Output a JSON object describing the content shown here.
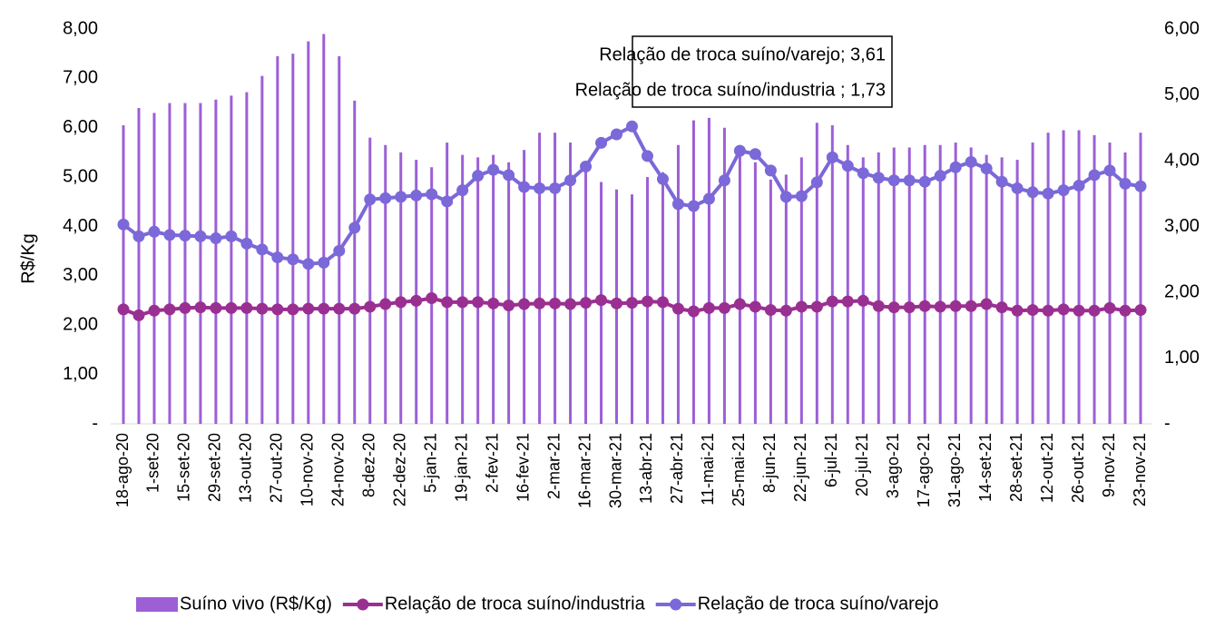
{
  "chart_data": {
    "type": "bar-line",
    "y_label": "R$/Kg",
    "annotations": [
      "Relação de troca suíno/varejo; 3,61",
      "Relação de troca suíno/industria ; 1,73"
    ],
    "categories": [
      "18-ago-20",
      null,
      "1-set-20",
      null,
      "15-set-20",
      null,
      "29-set-20",
      null,
      "13-out-20",
      null,
      "27-out-20",
      null,
      "10-nov-20",
      null,
      "24-nov-20",
      null,
      "8-dez-20",
      null,
      "22-dez-20",
      null,
      "5-jan-21",
      null,
      "19-jan-21",
      null,
      "2-fev-21",
      null,
      "16-fev-21",
      null,
      "2-mar-21",
      null,
      "16-mar-21",
      null,
      "30-mar-21",
      null,
      "13-abr-21",
      null,
      "27-abr-21",
      null,
      "11-mai-21",
      null,
      "25-mai-21",
      null,
      "8-jun-21",
      null,
      "22-jun-21",
      null,
      "6-jul-21",
      null,
      "20-jul-21",
      null,
      "3-ago-21",
      null,
      "17-ago-21",
      null,
      "31-ago-21",
      null,
      "14-set-21",
      null,
      "28-set-21",
      null,
      "12-out-21",
      null,
      "26-out-21",
      null,
      "9-nov-21",
      null,
      "23-nov-21"
    ],
    "series": [
      {
        "name": "Suíno vivo (R$/Kg)",
        "type": "bar",
        "color": "#9c5fd6",
        "values": [
          6.05,
          6.4,
          6.3,
          6.5,
          6.5,
          6.5,
          6.57,
          6.65,
          6.72,
          7.05,
          7.45,
          7.5,
          7.75,
          7.9,
          7.45,
          6.55,
          5.8,
          5.65,
          5.5,
          5.35,
          5.2,
          5.7,
          5.45,
          5.4,
          5.45,
          5.3,
          5.55,
          5.9,
          5.9,
          5.7,
          5.3,
          4.9,
          4.75,
          4.65,
          5.0,
          5.1,
          5.65,
          6.15,
          6.2,
          6.0,
          5.55,
          5.3,
          4.95,
          5.05,
          5.4,
          6.1,
          6.05,
          5.65,
          5.4,
          5.5,
          5.6,
          5.6,
          5.65,
          5.65,
          5.7,
          5.6,
          5.45,
          5.4,
          5.35,
          5.7,
          5.9,
          5.95,
          5.95,
          5.85,
          5.7,
          5.5,
          5.9
        ]
      },
      {
        "name": "Relação de troca suíno/industria",
        "type": "line",
        "axis": "y2",
        "color": "#9a2f92",
        "values": [
          1.74,
          1.65,
          1.72,
          1.74,
          1.76,
          1.77,
          1.76,
          1.76,
          1.76,
          1.75,
          1.74,
          1.74,
          1.75,
          1.75,
          1.75,
          1.75,
          1.78,
          1.82,
          1.85,
          1.87,
          1.91,
          1.85,
          1.85,
          1.85,
          1.83,
          1.8,
          1.82,
          1.83,
          1.83,
          1.82,
          1.84,
          1.88,
          1.83,
          1.84,
          1.86,
          1.85,
          1.75,
          1.71,
          1.76,
          1.76,
          1.82,
          1.78,
          1.73,
          1.72,
          1.78,
          1.78,
          1.86,
          1.86,
          1.87,
          1.79,
          1.77,
          1.77,
          1.79,
          1.78,
          1.79,
          1.79,
          1.82,
          1.77,
          1.72,
          1.73,
          1.72,
          1.74,
          1.72,
          1.72,
          1.76,
          1.72,
          1.73
        ]
      },
      {
        "name": "Relação de troca suíno/varejo",
        "type": "line",
        "axis": "y2",
        "color": "#7b68d9",
        "values": [
          3.03,
          2.85,
          2.92,
          2.87,
          2.86,
          2.85,
          2.82,
          2.85,
          2.74,
          2.65,
          2.53,
          2.5,
          2.43,
          2.45,
          2.63,
          2.98,
          3.41,
          3.43,
          3.45,
          3.47,
          3.49,
          3.38,
          3.55,
          3.77,
          3.86,
          3.78,
          3.6,
          3.58,
          3.58,
          3.7,
          3.91,
          4.27,
          4.4,
          4.52,
          4.07,
          3.72,
          3.34,
          3.31,
          3.42,
          3.7,
          4.15,
          4.1,
          3.85,
          3.45,
          3.46,
          3.67,
          4.05,
          3.92,
          3.81,
          3.74,
          3.7,
          3.7,
          3.68,
          3.77,
          3.9,
          3.98,
          3.88,
          3.68,
          3.58,
          3.52,
          3.5,
          3.55,
          3.62,
          3.78,
          3.85,
          3.65,
          3.61
        ]
      }
    ],
    "ylim": [
      0,
      8
    ],
    "yticks": [
      {
        "value": 0,
        "label": "-"
      },
      {
        "value": 1,
        "label": "1,00"
      },
      {
        "value": 2,
        "label": "2,00"
      },
      {
        "value": 3,
        "label": "3,00"
      },
      {
        "value": 4,
        "label": "4,00"
      },
      {
        "value": 5,
        "label": "5,00"
      },
      {
        "value": 6,
        "label": "6,00"
      },
      {
        "value": 7,
        "label": "7,00"
      },
      {
        "value": 8,
        "label": "8,00"
      }
    ],
    "y2lim": [
      0,
      6
    ],
    "y2ticks": [
      {
        "value": 0,
        "label": "-"
      },
      {
        "value": 1,
        "label": "1,00"
      },
      {
        "value": 2,
        "label": "2,00"
      },
      {
        "value": 3,
        "label": "3,00"
      },
      {
        "value": 4,
        "label": "4,00"
      },
      {
        "value": 5,
        "label": "5,00"
      },
      {
        "value": 6,
        "label": "6,00"
      }
    ],
    "grid": false,
    "legend": "bottom"
  }
}
